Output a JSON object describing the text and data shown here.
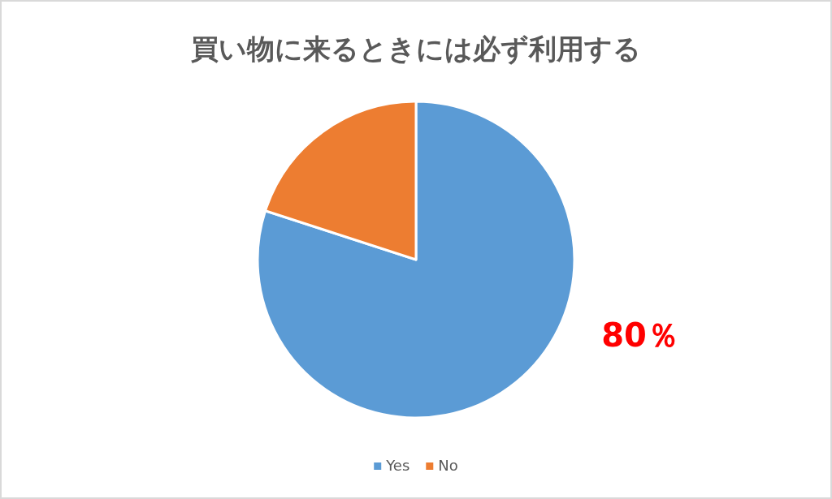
{
  "chart_data": {
    "type": "pie",
    "title": "買い物に来るときには必ず利用する",
    "categories": [
      "Yes",
      "No"
    ],
    "values": [
      80,
      20
    ],
    "colors": [
      "#5b9bd5",
      "#ed7d31"
    ],
    "value_labels": [
      "80％",
      null
    ],
    "legend": "bottom"
  }
}
